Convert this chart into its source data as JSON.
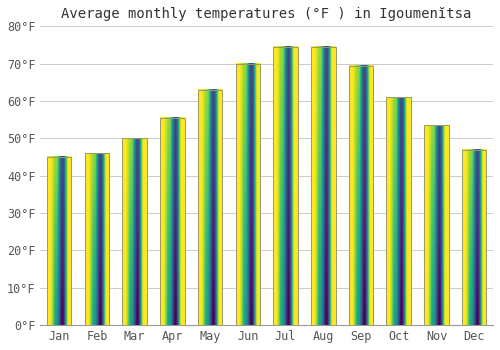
{
  "title": "Average monthly temperatures (°F ) in Igoumenĭtsa",
  "months": [
    "Jan",
    "Feb",
    "Mar",
    "Apr",
    "May",
    "Jun",
    "Jul",
    "Aug",
    "Sep",
    "Oct",
    "Nov",
    "Dec"
  ],
  "values": [
    45,
    46,
    50,
    55.5,
    63,
    70,
    74.5,
    74.5,
    69.5,
    61,
    53.5,
    47
  ],
  "bar_color_top": "#FFCC33",
  "bar_color_bottom": "#FF9900",
  "bar_edge_color": "#999966",
  "ylim": [
    0,
    80
  ],
  "yticks": [
    0,
    10,
    20,
    30,
    40,
    50,
    60,
    70,
    80
  ],
  "ytick_labels": [
    "0°F",
    "10°F",
    "20°F",
    "30°F",
    "40°F",
    "50°F",
    "60°F",
    "70°F",
    "80°F"
  ],
  "background_color": "#FFFFFF",
  "grid_color": "#CCCCCC",
  "title_fontsize": 10,
  "tick_fontsize": 8.5
}
